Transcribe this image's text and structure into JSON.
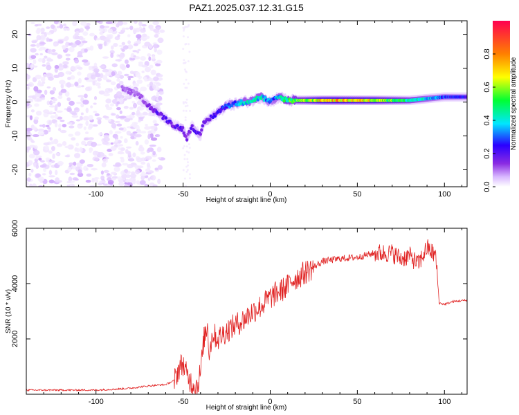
{
  "figure": {
    "title": "PAZ1.2025.037.12.31.G15"
  },
  "chart_data": [
    {
      "type": "heatmap",
      "title": "PAZ1.2025.037.12.31.G15",
      "xlabel": "Height of straight line (km)",
      "ylabel": "Frequency (Hz)",
      "xlim": [
        -140,
        113
      ],
      "ylim": [
        -25,
        24
      ],
      "xticks": [
        -100,
        -50,
        0,
        50,
        100
      ],
      "yticks": [
        -20,
        -10,
        0,
        10,
        20
      ],
      "colorbar": {
        "label": "Normalized spectral amplitude",
        "range": [
          0.0,
          1.0
        ],
        "ticks": [
          "0.0",
          "0.2",
          "0.4",
          "0.6",
          "0.8"
        ],
        "colormap": [
          "#ffffff",
          "#d9b8ff",
          "#8a2be2",
          "#2a00ff",
          "#00e6ff",
          "#00ff33",
          "#ffff00",
          "#ff8000",
          "#ff0050"
        ]
      },
      "ridge": {
        "x": [
          -85,
          -80,
          -75,
          -70,
          -65,
          -60,
          -55,
          -50,
          -48,
          -45,
          -42,
          -40,
          -38,
          -35,
          -30,
          -25,
          -20,
          -15,
          -10,
          -5,
          0,
          5,
          10,
          20,
          30,
          40,
          60,
          80,
          100,
          113
        ],
        "y": [
          4,
          3,
          2,
          -1,
          -3,
          -5,
          -7,
          -8,
          -11,
          -7,
          -9,
          -10,
          -6,
          -5,
          -3,
          -1,
          -0.5,
          0,
          0.5,
          1.5,
          0,
          1.5,
          0.5,
          0.5,
          0.5,
          0.5,
          0.5,
          0.5,
          1.5,
          1.5
        ],
        "amplitude": [
          0.2,
          0.2,
          0.2,
          0.25,
          0.3,
          0.3,
          0.3,
          0.3,
          0.25,
          0.3,
          0.3,
          0.3,
          0.3,
          0.3,
          0.35,
          0.4,
          0.45,
          0.5,
          0.5,
          0.5,
          0.4,
          0.5,
          0.6,
          0.65,
          0.8,
          0.8,
          0.75,
          0.55,
          0.4,
          0.35
        ]
      }
    },
    {
      "type": "line",
      "xlabel": "Height of straight line (km)",
      "ylabel": "SNR (10 * v/v)",
      "xlim": [
        -140,
        113
      ],
      "ylim": [
        0,
        6000
      ],
      "xticks": [
        -100,
        -50,
        0,
        50,
        100
      ],
      "yticks": [
        2000,
        4000,
        6000
      ],
      "line_color": "#e02020",
      "series": [
        {
          "x": [
            -140,
            -120,
            -100,
            -90,
            -80,
            -70,
            -60,
            -55,
            -52,
            -50,
            -48,
            -45,
            -42,
            -40,
            -38,
            -36,
            -35,
            -33,
            -30,
            -25,
            -20,
            -15,
            -10,
            -5,
            0,
            5,
            10,
            12,
            15,
            20,
            25,
            30,
            40,
            50,
            60,
            70,
            75,
            80,
            85,
            90,
            95,
            97,
            100,
            105,
            113
          ],
          "y": [
            150,
            150,
            150,
            180,
            220,
            300,
            350,
            500,
            1000,
            1100,
            700,
            400,
            300,
            800,
            2000,
            2500,
            1500,
            2200,
            2000,
            2300,
            2500,
            2700,
            3000,
            3200,
            3500,
            3700,
            3900,
            4100,
            4200,
            4400,
            4600,
            4800,
            4900,
            4950,
            5100,
            5100,
            4900,
            5000,
            4700,
            5300,
            5000,
            3300,
            3250,
            3350,
            3400
          ]
        }
      ]
    }
  ]
}
